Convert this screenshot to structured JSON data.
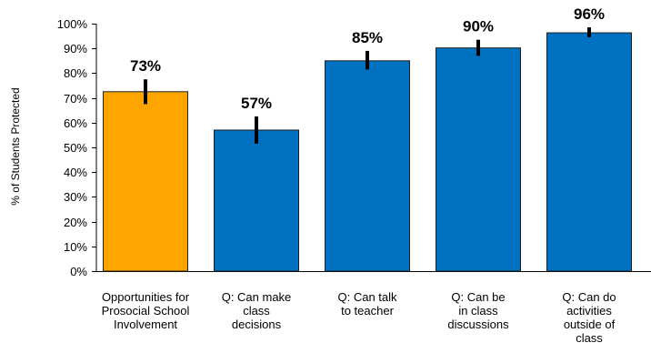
{
  "chart_data": {
    "type": "bar",
    "ylabel": "% of Students Protected",
    "ylim": [
      0,
      100
    ],
    "yticks": [
      "0%",
      "10%",
      "20%",
      "30%",
      "40%",
      "50%",
      "60%",
      "70%",
      "80%",
      "90%",
      "100%"
    ],
    "grid": false,
    "categories": [
      [
        "Opportunities for",
        "Prosocial School",
        "Involvement"
      ],
      [
        "Q: Can make",
        "class",
        "decisions"
      ],
      [
        "Q: Can talk",
        "to teacher"
      ],
      [
        "Q: Can be",
        "in class",
        "discussions"
      ],
      [
        "Q: Can do",
        "activities",
        "outside of",
        "class"
      ]
    ],
    "values": [
      72.5,
      57,
      85,
      90.2,
      96.3
    ],
    "value_labels": [
      "73%",
      "57%",
      "85%",
      "90%",
      "96%"
    ],
    "error_low": [
      67.5,
      51.5,
      81.5,
      87,
      94.5
    ],
    "error_high": [
      77.5,
      62.5,
      89,
      93.5,
      98.5
    ],
    "colors": [
      "#FFA500",
      "#0070C0",
      "#0070C0",
      "#0070C0",
      "#0070C0"
    ],
    "error_bar_color": "#000000"
  }
}
